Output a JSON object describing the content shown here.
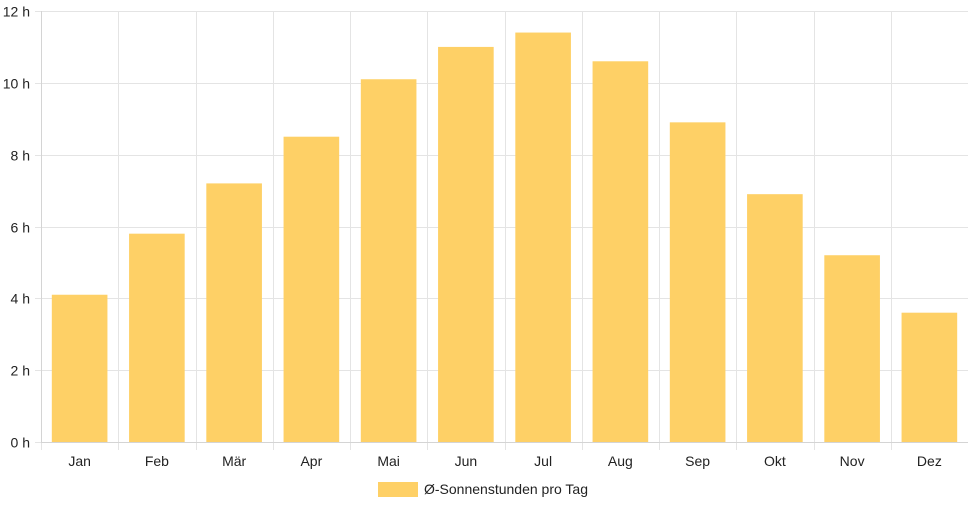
{
  "chart_data": {
    "type": "bar",
    "categories": [
      "Jan",
      "Feb",
      "Mär",
      "Apr",
      "Mai",
      "Jun",
      "Jul",
      "Aug",
      "Sep",
      "Okt",
      "Nov",
      "Dez"
    ],
    "series": [
      {
        "name": "Ø-Sonnenstunden pro Tag",
        "values": [
          4.1,
          5.8,
          7.2,
          8.5,
          10.1,
          11.0,
          11.4,
          10.6,
          8.9,
          6.9,
          5.2,
          3.6
        ],
        "color": "#fed066"
      }
    ],
    "ylim": [
      0,
      12
    ],
    "yticks": [
      0,
      2,
      4,
      6,
      8,
      10,
      12
    ],
    "ytick_suffix": " h",
    "grid": true,
    "legend_position": "bottom"
  }
}
